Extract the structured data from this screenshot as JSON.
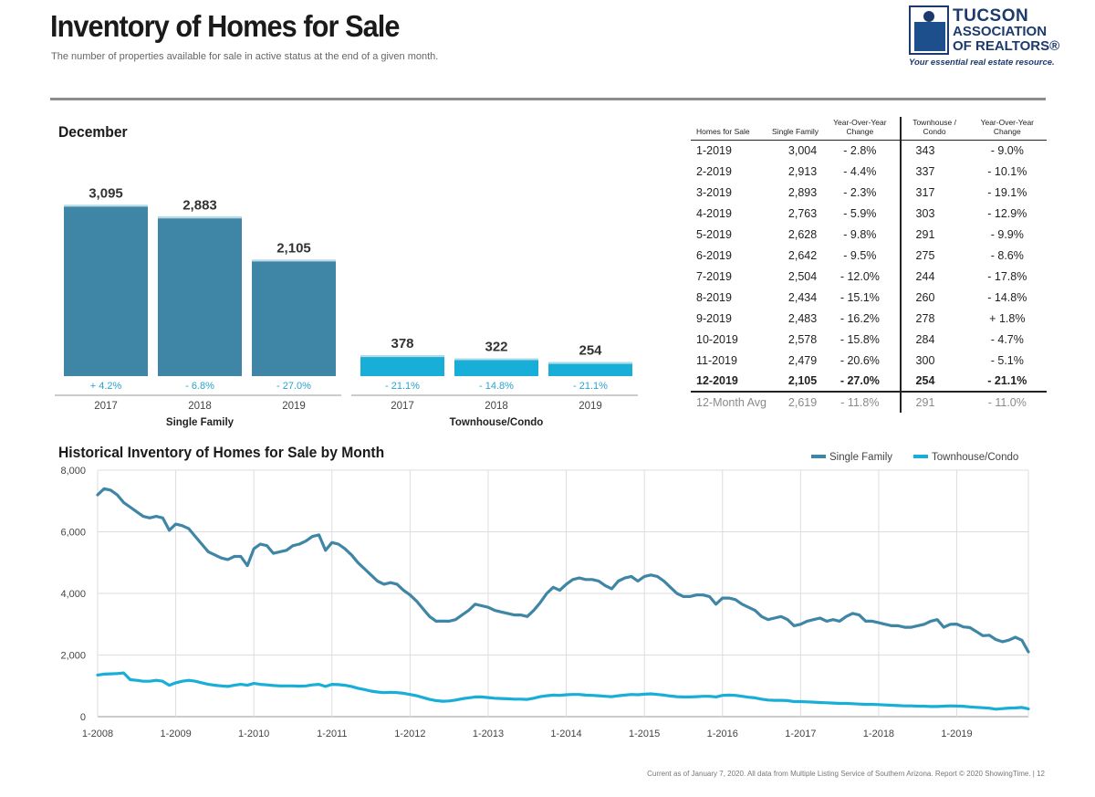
{
  "header": {
    "title": "Inventory of Homes for Sale",
    "subtitle": "The number of properties available for sale in active status at the end of a given month."
  },
  "logo": {
    "line1": "TUCSON",
    "line2": "ASSOCIATION",
    "line3": "OF REALTORS®",
    "tagline": "Your essential real estate resource."
  },
  "colors": {
    "single_family": "#3f86a6",
    "townhouse": "#19aed7",
    "change_text": "#2aa3cc",
    "axis": "#999999",
    "grid": "#dddddd"
  },
  "bar_section": {
    "label": "December"
  },
  "line_section": {
    "label": "Historical Inventory of Homes for Sale by Month"
  },
  "chart_data": [
    {
      "type": "bar",
      "title": "December",
      "groups": [
        {
          "name": "Single Family",
          "years": [
            "2017",
            "2018",
            "2019"
          ],
          "values": [
            3095,
            2883,
            2105
          ],
          "labels": [
            "3,095",
            "2,883",
            "2,105"
          ],
          "changes": [
            "+ 4.2%",
            "- 6.8%",
            "- 27.0%"
          ]
        },
        {
          "name": "Townhouse/Condo",
          "years": [
            "2017",
            "2018",
            "2019"
          ],
          "values": [
            378,
            322,
            254
          ],
          "labels": [
            "378",
            "322",
            "254"
          ],
          "changes": [
            "- 21.1%",
            "- 14.8%",
            "- 21.1%"
          ]
        }
      ]
    },
    {
      "type": "line",
      "title": "Historical Inventory of Homes for Sale by Month",
      "x_start": "2008-01",
      "x_ticks": [
        "1-2008",
        "1-2009",
        "1-2010",
        "1-2011",
        "1-2012",
        "1-2013",
        "1-2014",
        "1-2015",
        "1-2016",
        "1-2017",
        "1-2018",
        "1-2019"
      ],
      "y_ticks": [
        "0",
        "2,000",
        "4,000",
        "6,000",
        "8,000"
      ],
      "ylim": [
        0,
        8000
      ],
      "grid": true,
      "legend": "top-right",
      "series": [
        {
          "name": "Single Family",
          "values": [
            7200,
            7400,
            7350,
            7200,
            6950,
            6800,
            6650,
            6500,
            6450,
            6500,
            6450,
            6050,
            6250,
            6200,
            6100,
            5850,
            5600,
            5350,
            5250,
            5150,
            5100,
            5200,
            5200,
            4900,
            5450,
            5600,
            5550,
            5300,
            5350,
            5400,
            5550,
            5600,
            5700,
            5850,
            5900,
            5400,
            5650,
            5600,
            5450,
            5250,
            5000,
            4800,
            4600,
            4400,
            4300,
            4350,
            4300,
            4100,
            3950,
            3750,
            3500,
            3250,
            3100,
            3100,
            3100,
            3150,
            3300,
            3450,
            3650,
            3600,
            3550,
            3450,
            3400,
            3350,
            3300,
            3300,
            3250,
            3450,
            3700,
            4000,
            4200,
            4100,
            4300,
            4450,
            4500,
            4450,
            4450,
            4400,
            4250,
            4150,
            4400,
            4500,
            4550,
            4400,
            4550,
            4600,
            4550,
            4400,
            4200,
            4000,
            3900,
            3900,
            3950,
            3950,
            3900,
            3650,
            3850,
            3850,
            3800,
            3650,
            3550,
            3450,
            3250,
            3150,
            3200,
            3250,
            3150,
            2950,
            3000,
            3100,
            3150,
            3200,
            3100,
            3150,
            3100,
            3250,
            3350,
            3300,
            3100,
            3100,
            3050,
            3000,
            2950,
            2950,
            2900,
            2900,
            2950,
            3000,
            3100,
            3150,
            2900,
            3000,
            3004,
            2913,
            2893,
            2763,
            2628,
            2642,
            2504,
            2434,
            2483,
            2578,
            2479,
            2105
          ]
        },
        {
          "name": "Townhouse/Condo",
          "values": [
            1350,
            1380,
            1390,
            1400,
            1420,
            1200,
            1180,
            1150,
            1150,
            1180,
            1150,
            1020,
            1100,
            1150,
            1180,
            1150,
            1100,
            1050,
            1020,
            1000,
            980,
            1020,
            1050,
            1020,
            1080,
            1050,
            1030,
            1010,
            1000,
            1000,
            1000,
            990,
            1000,
            1030,
            1050,
            980,
            1050,
            1040,
            1020,
            980,
            920,
            880,
            830,
            800,
            780,
            790,
            780,
            760,
            720,
            680,
            620,
            560,
            520,
            500,
            510,
            540,
            580,
            610,
            640,
            640,
            620,
            600,
            590,
            580,
            570,
            570,
            560,
            600,
            650,
            680,
            700,
            690,
            710,
            720,
            720,
            700,
            690,
            680,
            660,
            650,
            680,
            700,
            720,
            710,
            730,
            740,
            720,
            700,
            670,
            650,
            640,
            640,
            650,
            660,
            660,
            640,
            690,
            700,
            690,
            660,
            630,
            610,
            570,
            540,
            530,
            530,
            520,
            490,
            490,
            480,
            470,
            460,
            450,
            440,
            430,
            430,
            420,
            410,
            400,
            400,
            390,
            380,
            370,
            360,
            350,
            350,
            340,
            340,
            330,
            330,
            340,
            350,
            343,
            337,
            317,
            303,
            291,
            275,
            244,
            260,
            278,
            284,
            300,
            254
          ]
        }
      ]
    }
  ],
  "table": {
    "headers": [
      "Homes for Sale",
      "Single Family",
      "Year-Over-Year Change",
      "Townhouse / Condo",
      "Year-Over-Year Change"
    ],
    "rows": [
      [
        "1-2019",
        "3,004",
        "- 2.8%",
        "343",
        "- 9.0%"
      ],
      [
        "2-2019",
        "2,913",
        "- 4.4%",
        "337",
        "- 10.1%"
      ],
      [
        "3-2019",
        "2,893",
        "- 2.3%",
        "317",
        "- 19.1%"
      ],
      [
        "4-2019",
        "2,763",
        "- 5.9%",
        "303",
        "- 12.9%"
      ],
      [
        "5-2019",
        "2,628",
        "- 9.8%",
        "291",
        "- 9.9%"
      ],
      [
        "6-2019",
        "2,642",
        "- 9.5%",
        "275",
        "- 8.6%"
      ],
      [
        "7-2019",
        "2,504",
        "- 12.0%",
        "244",
        "- 17.8%"
      ],
      [
        "8-2019",
        "2,434",
        "- 15.1%",
        "260",
        "- 14.8%"
      ],
      [
        "9-2019",
        "2,483",
        "- 16.2%",
        "278",
        "+ 1.8%"
      ],
      [
        "10-2019",
        "2,578",
        "- 15.8%",
        "284",
        "- 4.7%"
      ],
      [
        "11-2019",
        "2,479",
        "- 20.6%",
        "300",
        "- 5.1%"
      ],
      [
        "12-2019",
        "2,105",
        "- 27.0%",
        "254",
        "- 21.1%"
      ]
    ],
    "avg_row": [
      "12-Month Avg",
      "2,619",
      "- 11.8%",
      "291",
      "- 11.0%"
    ]
  },
  "footer": {
    "text": "Current as of January 7, 2020. All data from Multiple Listing Service of Southern Arizona. Report © 2020 ShowingTime. | 12"
  }
}
